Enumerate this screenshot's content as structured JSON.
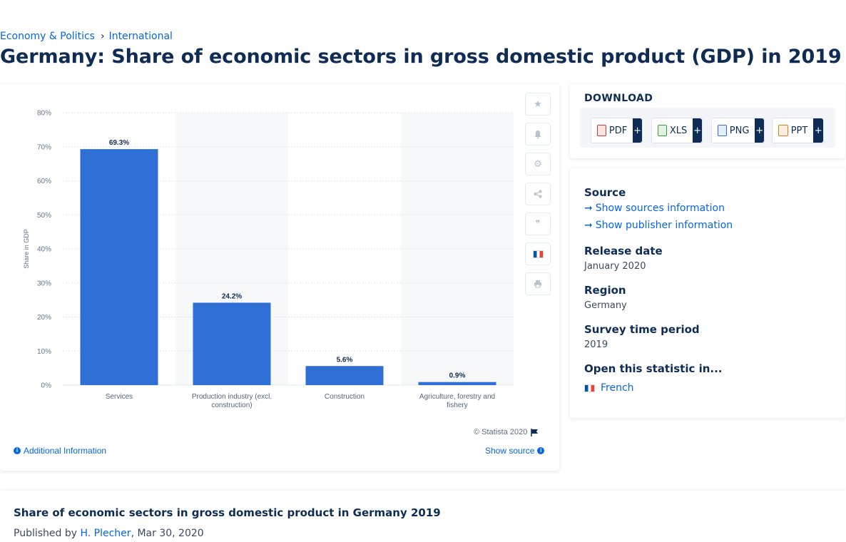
{
  "breadcrumb": {
    "item1": "Economy & Politics",
    "separator": "›",
    "item2": "International"
  },
  "page_title": "Germany: Share of economic sectors in gross domestic product (GDP) in 2019",
  "chart_data": {
    "type": "bar",
    "categories": [
      "Services",
      "Production industry (excl. construction)",
      "Construction",
      "Agriculture, forestry and fishery"
    ],
    "category_lines": [
      [
        "Services"
      ],
      [
        "Production industry (excl.",
        "construction)"
      ],
      [
        "Construction"
      ],
      [
        "Agriculture, forestry and",
        "fishery"
      ]
    ],
    "values": [
      69.3,
      24.2,
      5.6,
      0.9
    ],
    "value_labels": [
      "69.3%",
      "24.2%",
      "5.6%",
      "0.9%"
    ],
    "ylabel": "Share in GDP",
    "ylim": [
      0,
      80
    ],
    "yticks": [
      "0%",
      "10%",
      "20%",
      "30%",
      "40%",
      "50%",
      "60%",
      "70%",
      "80%"
    ],
    "bar_color": "#2f6fd6",
    "grid": true
  },
  "tools": {
    "favorite_icon": "star-icon",
    "notify_icon": "bell-icon",
    "settings_icon": "gear-icon",
    "share_icon": "share-icon",
    "cite_icon": "quote-icon",
    "language_icon": "french-flag-icon",
    "print_icon": "printer-icon"
  },
  "credit": "© Statista 2020",
  "additional_info": "Additional Information",
  "show_source": "Show source",
  "download": {
    "title": "DOWNLOAD",
    "buttons": [
      {
        "label": "PDF",
        "plus": "+"
      },
      {
        "label": "XLS",
        "plus": "+"
      },
      {
        "label": "PNG",
        "plus": "+"
      },
      {
        "label": "PPT",
        "plus": "+"
      }
    ]
  },
  "meta": {
    "source_heading": "Source",
    "show_sources": "Show sources information",
    "show_publisher": "Show publisher information",
    "release_heading": "Release date",
    "release_value": "January 2020",
    "region_heading": "Region",
    "region_value": "Germany",
    "survey_heading": "Survey time period",
    "survey_value": "2019",
    "open_heading": "Open this statistic in...",
    "open_french": "French"
  },
  "bottom": {
    "title": "Share of economic sectors in gross domestic product in Germany 2019",
    "published_prefix": "Published by",
    "author": "H. Plecher",
    "date": ", Mar 30, 2020"
  }
}
